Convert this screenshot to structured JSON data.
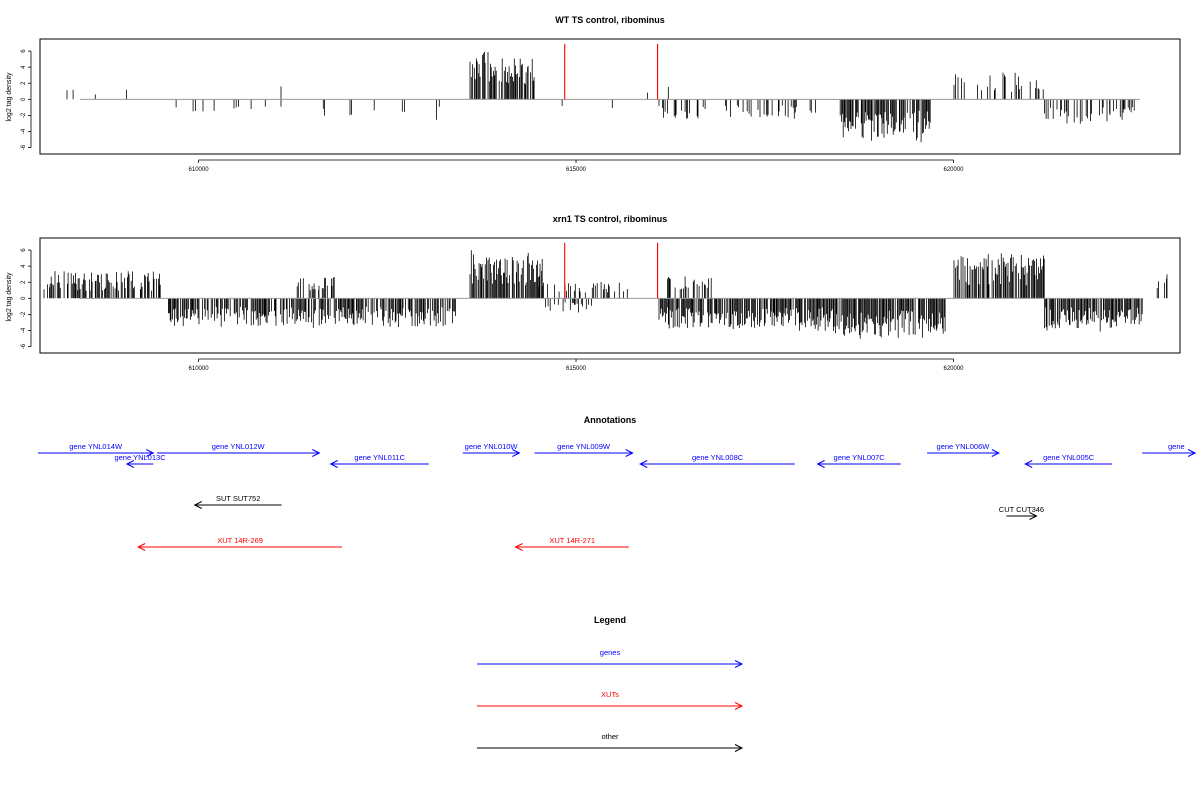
{
  "chart_data": [
    {
      "type": "bar",
      "title": "WT TS control, ribominus",
      "ylabel": "log2 tag density",
      "xlabel": "",
      "xlim": [
        607900,
        623000
      ],
      "ylim": [
        -6.8,
        7.5
      ],
      "x_ticks": [
        610000,
        615000,
        620000
      ],
      "y_ticks": [
        -6,
        -4,
        -2,
        0,
        2,
        4,
        6
      ],
      "grid": false,
      "markers": {
        "color": "#ff0000",
        "x": [
          614850,
          616080
        ]
      },
      "segments": [
        {
          "start": 607950,
          "end": 608400,
          "density": 0.05,
          "sign": 1,
          "amp": 1.8,
          "seed": 11
        },
        {
          "start": 608600,
          "end": 609200,
          "density": 0.04,
          "sign": 1,
          "amp": 1.2,
          "seed": 12
        },
        {
          "start": 609650,
          "end": 611150,
          "density": 0.06,
          "sign": -1,
          "amp": 1.3,
          "seed": 13
        },
        {
          "start": 610900,
          "end": 611300,
          "density": 0.05,
          "sign": 1,
          "amp": 1.4,
          "seed": 14
        },
        {
          "start": 611500,
          "end": 613300,
          "density": 0.09,
          "sign": -1,
          "amp": 2.0,
          "seed": 15
        },
        {
          "start": 613600,
          "end": 614450,
          "density": 0.75,
          "sign": 1,
          "amp": 4.6,
          "seed": 16
        },
        {
          "start": 614500,
          "end": 615700,
          "density": 0.04,
          "sign": -1,
          "amp": 0.8,
          "seed": 17
        },
        {
          "start": 615800,
          "end": 616100,
          "density": 0.08,
          "sign": 1,
          "amp": 1.6,
          "seed": 18
        },
        {
          "start": 616100,
          "end": 618200,
          "density": 0.3,
          "sign": -1,
          "amp": 1.9,
          "seed": 19
        },
        {
          "start": 616200,
          "end": 616400,
          "density": 0.15,
          "sign": 1,
          "amp": 1.8,
          "seed": 20
        },
        {
          "start": 618500,
          "end": 619700,
          "density": 0.8,
          "sign": -1,
          "amp": 3.8,
          "seed": 21
        },
        {
          "start": 620000,
          "end": 621200,
          "density": 0.25,
          "sign": 1,
          "amp": 2.6,
          "seed": 22
        },
        {
          "start": 621200,
          "end": 622400,
          "density": 0.45,
          "sign": -1,
          "amp": 2.4,
          "seed": 23
        }
      ]
    },
    {
      "type": "bar",
      "title": "xrn1 TS control, ribominus",
      "ylabel": "log2 tag density",
      "xlabel": "",
      "xlim": [
        607900,
        623000
      ],
      "ylim": [
        -6.8,
        7.5
      ],
      "x_ticks": [
        610000,
        615000,
        620000
      ],
      "y_ticks": [
        -6,
        -4,
        -2,
        0,
        2,
        4,
        6
      ],
      "grid": false,
      "markers": {
        "color": "#ff0000",
        "x": [
          614850,
          616080
        ]
      },
      "segments": [
        {
          "start": 607950,
          "end": 609500,
          "density": 0.65,
          "sign": 1,
          "amp": 2.6,
          "seed": 31
        },
        {
          "start": 609600,
          "end": 613400,
          "density": 0.7,
          "sign": -1,
          "amp": 2.8,
          "seed": 32
        },
        {
          "start": 611300,
          "end": 611800,
          "density": 0.5,
          "sign": 1,
          "amp": 2.2,
          "seed": 33
        },
        {
          "start": 613600,
          "end": 614550,
          "density": 0.85,
          "sign": 1,
          "amp": 4.4,
          "seed": 34
        },
        {
          "start": 614500,
          "end": 615700,
          "density": 0.35,
          "sign": 1,
          "amp": 1.6,
          "seed": 35
        },
        {
          "start": 614550,
          "end": 615200,
          "density": 0.25,
          "sign": -1,
          "amp": 1.4,
          "seed": 36
        },
        {
          "start": 616100,
          "end": 618300,
          "density": 0.85,
          "sign": -1,
          "amp": 3.0,
          "seed": 37
        },
        {
          "start": 616200,
          "end": 616800,
          "density": 0.5,
          "sign": 1,
          "amp": 2.5,
          "seed": 38
        },
        {
          "start": 618300,
          "end": 619900,
          "density": 0.9,
          "sign": -1,
          "amp": 3.8,
          "seed": 39
        },
        {
          "start": 620000,
          "end": 621200,
          "density": 0.9,
          "sign": 1,
          "amp": 4.2,
          "seed": 40
        },
        {
          "start": 621200,
          "end": 622500,
          "density": 0.85,
          "sign": -1,
          "amp": 3.0,
          "seed": 41
        },
        {
          "start": 622700,
          "end": 622900,
          "density": 0.3,
          "sign": 1,
          "amp": 2.8,
          "seed": 42
        }
      ]
    }
  ],
  "annotations": {
    "title": "Annotations",
    "colors": {
      "gene": "#0000ff",
      "xut": "#ff0000",
      "other": "#000000"
    },
    "features": [
      {
        "label": "gene YNL014W",
        "start": 607700,
        "end": 609400,
        "strand": "+",
        "kind": "gene",
        "row": 0
      },
      {
        "label": "gene YNL013C",
        "start": 609050,
        "end": 609400,
        "strand": "-",
        "kind": "gene",
        "row": 1
      },
      {
        "label": "gene YNL012W",
        "start": 609450,
        "end": 611600,
        "strand": "+",
        "kind": "gene",
        "row": 0
      },
      {
        "label": "gene YNL011C",
        "start": 611750,
        "end": 613050,
        "strand": "-",
        "kind": "gene",
        "row": 1
      },
      {
        "label": "gene YNL010W",
        "start": 613500,
        "end": 614250,
        "strand": "+",
        "kind": "gene",
        "row": 0
      },
      {
        "label": "gene YNL009W",
        "start": 614450,
        "end": 615750,
        "strand": "+",
        "kind": "gene",
        "row": 0
      },
      {
        "label": "gene YNL008C",
        "start": 615850,
        "end": 617900,
        "strand": "-",
        "kind": "gene",
        "row": 1
      },
      {
        "label": "gene YNL007C",
        "start": 618200,
        "end": 619300,
        "strand": "-",
        "kind": "gene",
        "row": 1
      },
      {
        "label": "gene YNL006W",
        "start": 619650,
        "end": 620600,
        "strand": "+",
        "kind": "gene",
        "row": 0
      },
      {
        "label": "gene YNL005C",
        "start": 620950,
        "end": 622100,
        "strand": "-",
        "kind": "gene",
        "row": 1
      },
      {
        "label": "gene",
        "start": 622500,
        "end": 623200,
        "strand": "+",
        "kind": "gene",
        "row": 0
      },
      {
        "label": "SUT SUT752",
        "start": 609950,
        "end": 611100,
        "strand": "-",
        "kind": "other",
        "row": 2
      },
      {
        "label": "CUT CUT346",
        "start": 620700,
        "end": 621100,
        "strand": "+",
        "kind": "other",
        "row": 3
      },
      {
        "label": "XUT 14R-269",
        "start": 609200,
        "end": 611900,
        "strand": "-",
        "kind": "xut",
        "row": 4
      },
      {
        "label": "XUT 14R-271",
        "start": 614200,
        "end": 615700,
        "strand": "-",
        "kind": "xut",
        "row": 4
      }
    ]
  },
  "legend": {
    "title": "Legend",
    "entries": [
      {
        "label": "genes",
        "color": "#0000ff"
      },
      {
        "label": "XUTs",
        "color": "#ff0000"
      },
      {
        "label": "other",
        "color": "#000000"
      }
    ]
  }
}
